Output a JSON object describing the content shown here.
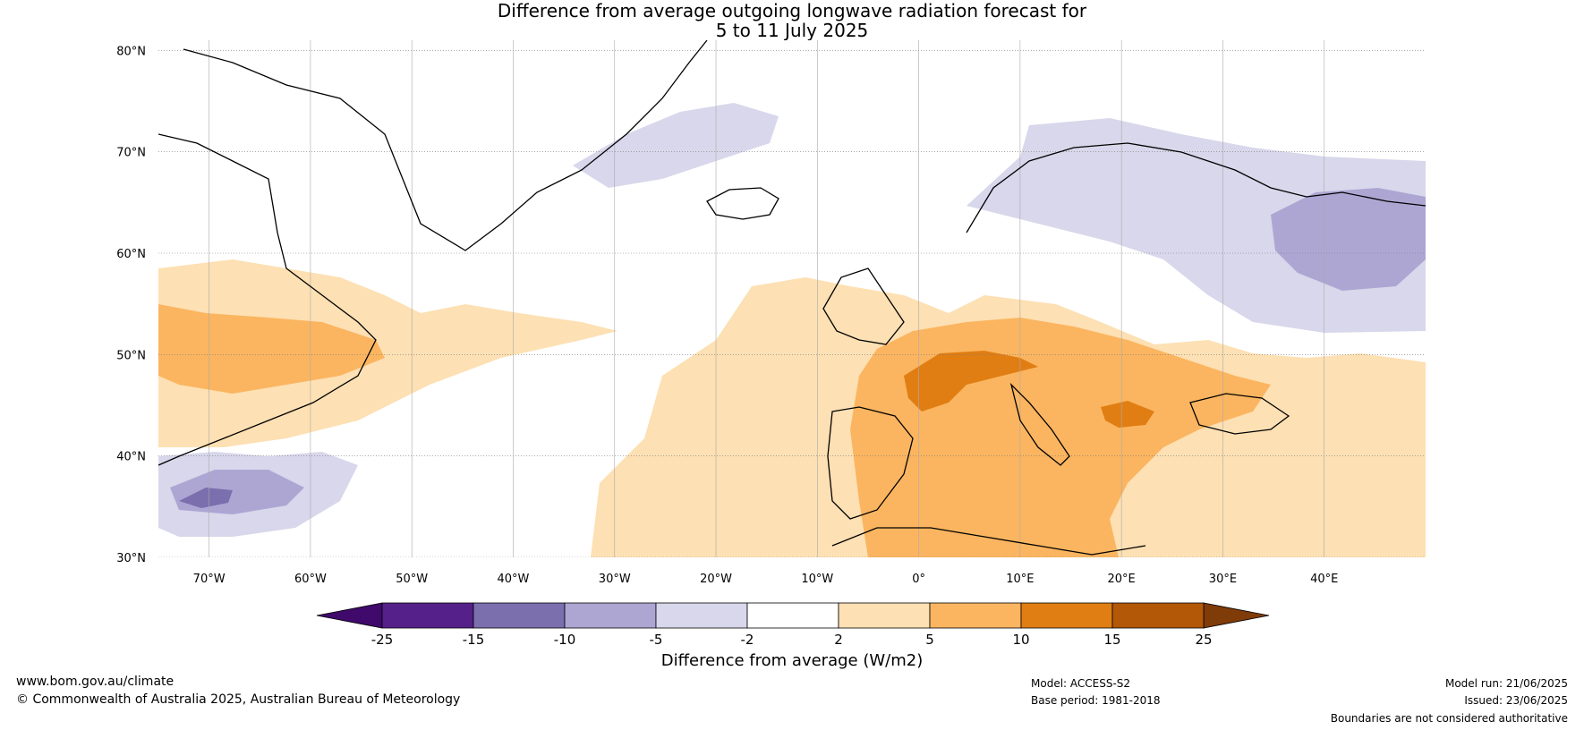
{
  "title": {
    "line1": "Difference from average outgoing longwave radiation forecast for",
    "line2": "5 to 11 July 2025"
  },
  "map": {
    "extent": {
      "lon": [
        -75,
        50
      ],
      "lat": [
        30,
        81
      ]
    },
    "lat_ticks": [
      {
        "value": 80,
        "label": "80°N"
      },
      {
        "value": 70,
        "label": "70°N"
      },
      {
        "value": 60,
        "label": "60°N"
      },
      {
        "value": 50,
        "label": "50°N"
      },
      {
        "value": 40,
        "label": "40°N"
      },
      {
        "value": 30,
        "label": "30°N"
      }
    ],
    "lon_ticks": [
      {
        "value": -70,
        "label": "70°W"
      },
      {
        "value": -60,
        "label": "60°W"
      },
      {
        "value": -50,
        "label": "50°W"
      },
      {
        "value": -40,
        "label": "40°W"
      },
      {
        "value": -30,
        "label": "30°W"
      },
      {
        "value": -20,
        "label": "20°W"
      },
      {
        "value": -10,
        "label": "10°W"
      },
      {
        "value": 0,
        "label": "0°"
      },
      {
        "value": 10,
        "label": "10°E"
      },
      {
        "value": 20,
        "label": "20°E"
      },
      {
        "value": 30,
        "label": "30°E"
      },
      {
        "value": 40,
        "label": "40°E"
      }
    ]
  },
  "colorbar": {
    "title": "Difference from average (W/m2)",
    "boundaries": [
      {
        "value": -25,
        "label": "-25"
      },
      {
        "value": -15,
        "label": "-15"
      },
      {
        "value": -10,
        "label": "-10"
      },
      {
        "value": -5,
        "label": "-5"
      },
      {
        "value": -2,
        "label": "-2"
      },
      {
        "value": 2,
        "label": "2"
      },
      {
        "value": 5,
        "label": "5"
      },
      {
        "value": 10,
        "label": "10"
      },
      {
        "value": 15,
        "label": "15"
      },
      {
        "value": 25,
        "label": "25"
      }
    ],
    "colors": {
      "below_min": "#3f0a6b",
      "bins": [
        "#55208a",
        "#7b6fae",
        "#ada6d3",
        "#d8d7eb",
        "#ffffff",
        "#fde0b3",
        "#fbb560",
        "#e07e13",
        "#b35806"
      ],
      "above_max": "#7f3b08"
    }
  },
  "footer": {
    "website": "www.bom.gov.au/climate",
    "copyright": "© Commonwealth of Australia 2025, Australian Bureau of Meteorology",
    "model": "Model: ACCESS-S2",
    "base_period": "Base period: 1981-2018",
    "model_run": "Model run: 21/06/2025",
    "issued": "Issued: 23/06/2025",
    "disclaimer": "Boundaries are not considered authoritative"
  }
}
